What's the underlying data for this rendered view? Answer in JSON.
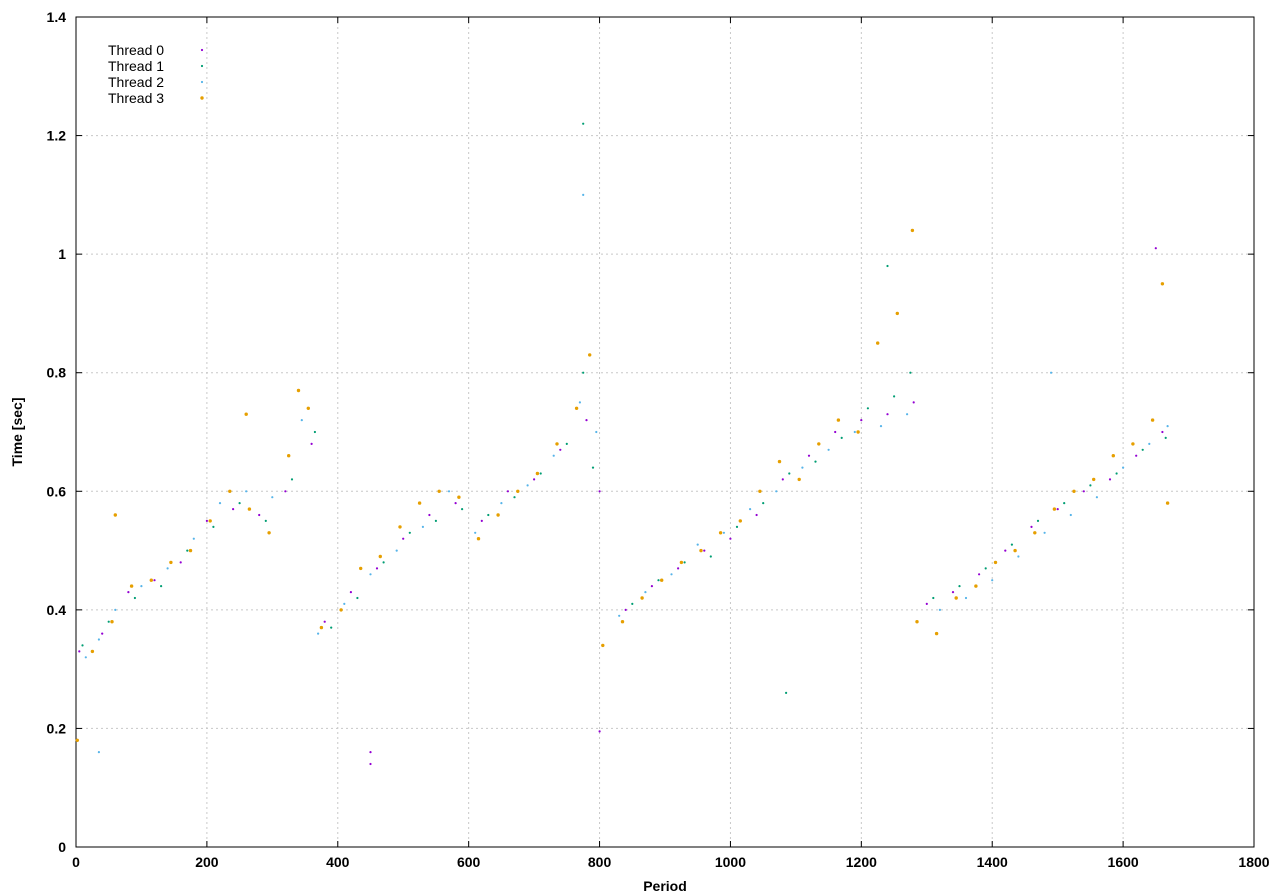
{
  "chart_data": {
    "type": "scatter",
    "title": "",
    "xlabel": "Period",
    "ylabel": "Time [sec]",
    "xlim": [
      0,
      1800
    ],
    "ylim": [
      0,
      1.4
    ],
    "x_ticks": [
      0,
      200,
      400,
      600,
      800,
      1000,
      1200,
      1400,
      1600,
      1800
    ],
    "y_ticks": [
      0,
      0.2,
      0.4,
      0.6,
      0.8,
      1,
      1.2,
      1.4
    ],
    "grid": true,
    "legend_position": "top-left",
    "series": [
      {
        "name": "Thread 0",
        "color": "#9400d3",
        "marker": "dot",
        "x": [
          5,
          40,
          80,
          120,
          160,
          200,
          240,
          280,
          320,
          360,
          380,
          420,
          460,
          500,
          540,
          580,
          620,
          660,
          700,
          740,
          780,
          800,
          840,
          880,
          920,
          960,
          1000,
          1040,
          1080,
          1120,
          1160,
          1200,
          1240,
          1280,
          1300,
          1340,
          1380,
          1420,
          1460,
          1500,
          1540,
          1580,
          1620,
          1660,
          450,
          450,
          800,
          1650
        ],
        "y": [
          0.33,
          0.36,
          0.43,
          0.45,
          0.48,
          0.55,
          0.57,
          0.56,
          0.6,
          0.68,
          0.38,
          0.43,
          0.47,
          0.52,
          0.56,
          0.58,
          0.55,
          0.6,
          0.62,
          0.67,
          0.72,
          0.6,
          0.4,
          0.44,
          0.47,
          0.5,
          0.52,
          0.56,
          0.62,
          0.66,
          0.7,
          0.72,
          0.73,
          0.75,
          0.41,
          0.43,
          0.46,
          0.5,
          0.54,
          0.57,
          0.6,
          0.62,
          0.66,
          0.7,
          0.16,
          0.14,
          0.195,
          1.01
        ]
      },
      {
        "name": "Thread 1",
        "color": "#009e73",
        "marker": "dot",
        "x": [
          10,
          50,
          90,
          130,
          170,
          210,
          250,
          290,
          330,
          365,
          390,
          430,
          470,
          510,
          550,
          590,
          630,
          670,
          710,
          750,
          775,
          790,
          850,
          890,
          930,
          970,
          1010,
          1050,
          1090,
          1130,
          1170,
          1210,
          1250,
          1275,
          1310,
          1350,
          1390,
          1430,
          1470,
          1510,
          1550,
          1590,
          1630,
          1665,
          775,
          1085,
          1240
        ],
        "y": [
          0.34,
          0.38,
          0.42,
          0.44,
          0.5,
          0.54,
          0.58,
          0.55,
          0.62,
          0.7,
          0.37,
          0.42,
          0.48,
          0.53,
          0.55,
          0.57,
          0.56,
          0.59,
          0.63,
          0.68,
          0.8,
          0.64,
          0.41,
          0.45,
          0.48,
          0.49,
          0.54,
          0.58,
          0.63,
          0.65,
          0.69,
          0.74,
          0.76,
          0.8,
          0.42,
          0.44,
          0.47,
          0.51,
          0.55,
          0.58,
          0.61,
          0.63,
          0.67,
          0.69,
          1.22,
          0.26,
          0.98
        ]
      },
      {
        "name": "Thread 2",
        "color": "#56b4e9",
        "marker": "dot",
        "x": [
          15,
          35,
          60,
          100,
          140,
          180,
          220,
          260,
          300,
          345,
          370,
          410,
          450,
          490,
          530,
          570,
          610,
          650,
          690,
          730,
          770,
          795,
          830,
          870,
          910,
          950,
          990,
          1030,
          1070,
          1110,
          1150,
          1190,
          1230,
          1270,
          1320,
          1360,
          1400,
          1440,
          1480,
          1520,
          1560,
          1600,
          1640,
          1668,
          35,
          775,
          1490
        ],
        "y": [
          0.32,
          0.35,
          0.4,
          0.44,
          0.47,
          0.52,
          0.58,
          0.6,
          0.59,
          0.72,
          0.36,
          0.41,
          0.46,
          0.5,
          0.54,
          0.6,
          0.53,
          0.58,
          0.61,
          0.66,
          0.75,
          0.7,
          0.39,
          0.43,
          0.46,
          0.51,
          0.53,
          0.57,
          0.6,
          0.64,
          0.67,
          0.7,
          0.71,
          0.73,
          0.4,
          0.42,
          0.45,
          0.49,
          0.53,
          0.56,
          0.59,
          0.64,
          0.68,
          0.71,
          0.16,
          1.1,
          0.8
        ]
      },
      {
        "name": "Thread 3",
        "color": "#e69f00",
        "marker": "dot",
        "x": [
          2,
          25,
          55,
          85,
          115,
          145,
          175,
          205,
          235,
          265,
          295,
          325,
          340,
          355,
          375,
          405,
          435,
          465,
          495,
          525,
          555,
          585,
          615,
          645,
          675,
          705,
          735,
          765,
          785,
          805,
          835,
          865,
          895,
          925,
          955,
          985,
          1015,
          1045,
          1075,
          1105,
          1135,
          1165,
          1195,
          1225,
          1255,
          1278,
          1285,
          1315,
          1345,
          1375,
          1405,
          1435,
          1465,
          1495,
          1525,
          1555,
          1585,
          1615,
          1645,
          1660,
          1668,
          60,
          260
        ],
        "y": [
          0.18,
          0.33,
          0.38,
          0.44,
          0.45,
          0.48,
          0.5,
          0.55,
          0.6,
          0.57,
          0.53,
          0.66,
          0.77,
          0.74,
          0.37,
          0.4,
          0.47,
          0.49,
          0.54,
          0.58,
          0.6,
          0.59,
          0.52,
          0.56,
          0.6,
          0.63,
          0.68,
          0.74,
          0.83,
          0.34,
          0.38,
          0.42,
          0.45,
          0.48,
          0.5,
          0.53,
          0.55,
          0.6,
          0.65,
          0.62,
          0.68,
          0.72,
          0.7,
          0.85,
          0.9,
          1.04,
          0.38,
          0.36,
          0.42,
          0.44,
          0.48,
          0.5,
          0.53,
          0.57,
          0.6,
          0.62,
          0.66,
          0.68,
          0.72,
          0.95,
          0.58,
          0.56,
          0.73
        ]
      }
    ]
  }
}
